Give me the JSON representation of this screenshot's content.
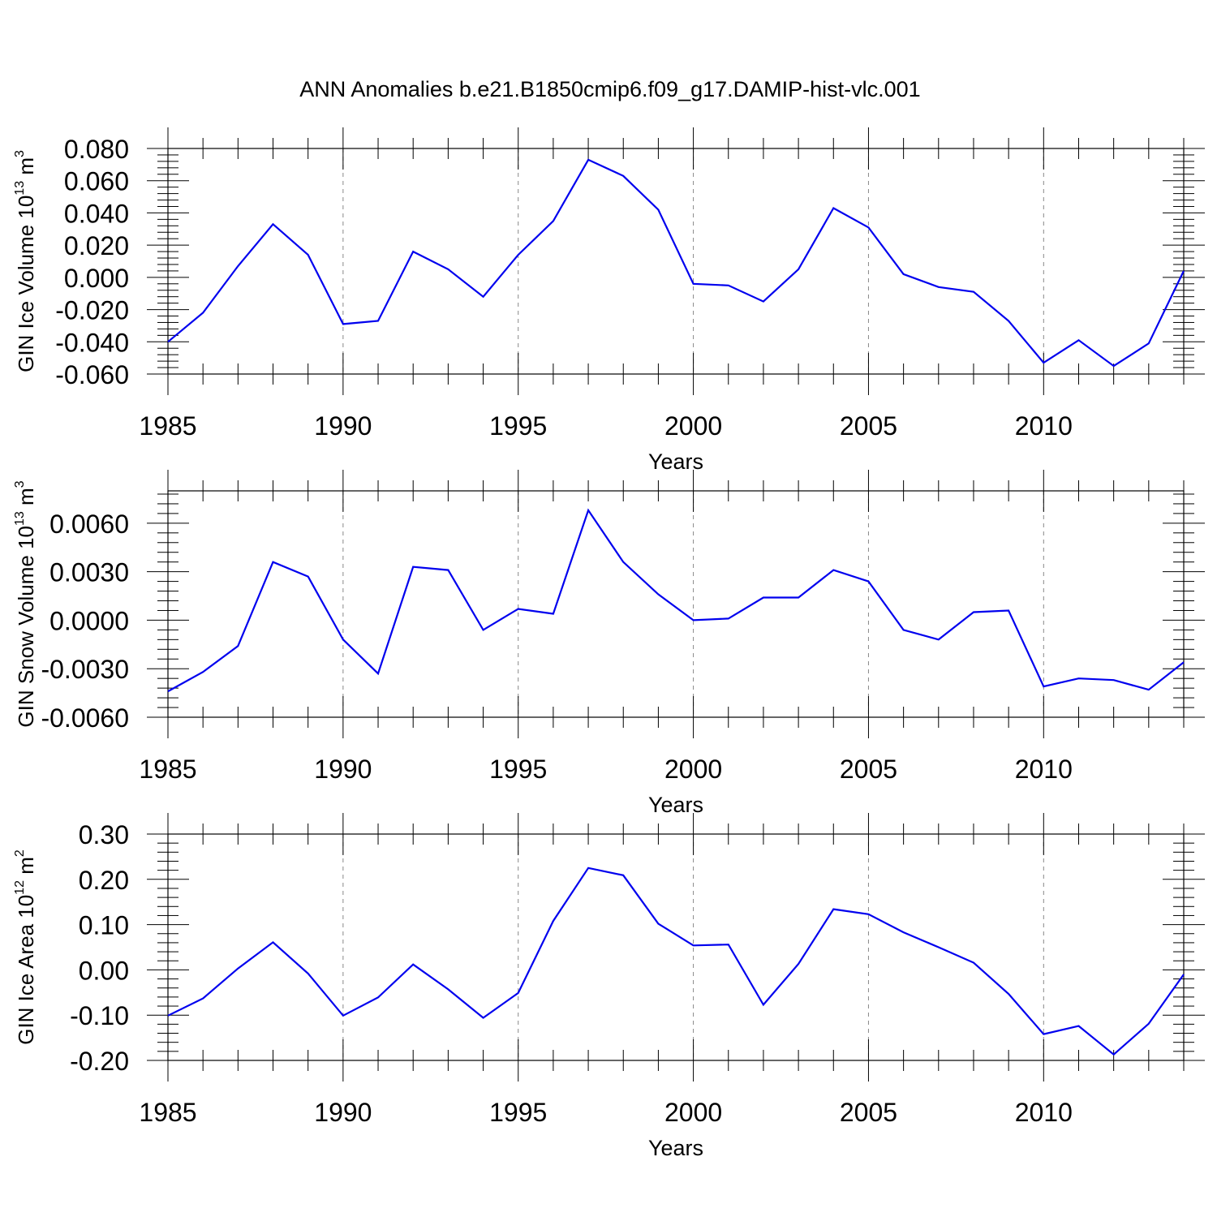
{
  "title": "ANN Anomalies b.e21.B1850cmip6.f09_g17.DAMIP-hist-vlc.001",
  "line_color": "#0000ee",
  "chart_data": [
    {
      "type": "line",
      "ylabel_main": "GIN Ice Volume 10",
      "ylabel_exp": "13",
      "ylabel_unit": " m",
      "ylabel_unit_exp": "3",
      "xlabel": "Years",
      "xlim": [
        1985,
        2014
      ],
      "ylim": [
        -0.06,
        0.08
      ],
      "xticks": [
        1985,
        1990,
        1995,
        2000,
        2005,
        2010
      ],
      "xtick_labels": [
        "1985",
        "1990",
        "1995",
        "2000",
        "2005",
        "2010"
      ],
      "yticks": [
        -0.06,
        -0.04,
        -0.02,
        0.0,
        0.02,
        0.04,
        0.06,
        0.08
      ],
      "ytick_labels": [
        "-0.060",
        "-0.040",
        "-0.020",
        "0.000",
        "0.020",
        "0.040",
        "0.060",
        "0.080"
      ],
      "x": [
        1985,
        1986,
        1987,
        1988,
        1989,
        1990,
        1991,
        1992,
        1993,
        1994,
        1995,
        1996,
        1997,
        1998,
        1999,
        2000,
        2001,
        2002,
        2003,
        2004,
        2005,
        2006,
        2007,
        2008,
        2009,
        2010,
        2011,
        2012,
        2013,
        2014
      ],
      "series": [
        {
          "name": "GIN Ice Volume",
          "values": [
            -0.04,
            -0.022,
            0.007,
            0.033,
            0.014,
            -0.029,
            -0.027,
            0.016,
            0.005,
            -0.012,
            0.014,
            0.035,
            0.073,
            0.063,
            0.042,
            -0.004,
            -0.005,
            -0.015,
            0.005,
            0.043,
            0.031,
            0.002,
            -0.006,
            -0.009,
            -0.027,
            -0.053,
            -0.039,
            -0.055,
            -0.041,
            0.004
          ]
        }
      ]
    },
    {
      "type": "line",
      "ylabel_main": "GIN Snow Volume 10",
      "ylabel_exp": "13",
      "ylabel_unit": " m",
      "ylabel_unit_exp": "3",
      "xlabel": "Years",
      "xlim": [
        1985,
        2014
      ],
      "ylim": [
        -0.006,
        0.008
      ],
      "xticks": [
        1985,
        1990,
        1995,
        2000,
        2005,
        2010
      ],
      "xtick_labels": [
        "1985",
        "1990",
        "1995",
        "2000",
        "2005",
        "2010"
      ],
      "yticks": [
        -0.006,
        -0.003,
        0.0,
        0.003,
        0.006
      ],
      "ytick_labels": [
        "-0.0060",
        "-0.0030",
        "0.0000",
        "0.0030",
        "0.0060"
      ],
      "x": [
        1985,
        1986,
        1987,
        1988,
        1989,
        1990,
        1991,
        1992,
        1993,
        1994,
        1995,
        1996,
        1997,
        1998,
        1999,
        2000,
        2001,
        2002,
        2003,
        2004,
        2005,
        2006,
        2007,
        2008,
        2009,
        2010,
        2011,
        2012,
        2013,
        2014
      ],
      "series": [
        {
          "name": "GIN Snow Volume",
          "values": [
            -0.0044,
            -0.0032,
            -0.0016,
            0.0036,
            0.0027,
            -0.0012,
            -0.0033,
            0.0033,
            0.0031,
            -0.0006,
            0.0007,
            0.0004,
            0.0068,
            0.0036,
            0.0016,
            0.0,
            0.0001,
            0.0014,
            0.0014,
            0.0031,
            0.0024,
            -0.0006,
            -0.0012,
            0.0005,
            0.0006,
            -0.0041,
            -0.0036,
            -0.0037,
            -0.0043,
            -0.0026
          ]
        }
      ]
    },
    {
      "type": "line",
      "ylabel_main": "GIN Ice Area 10",
      "ylabel_exp": "12",
      "ylabel_unit": " m",
      "ylabel_unit_exp": "2",
      "xlabel": "Years",
      "xlim": [
        1985,
        2014
      ],
      "ylim": [
        -0.2,
        0.3
      ],
      "xticks": [
        1985,
        1990,
        1995,
        2000,
        2005,
        2010
      ],
      "xtick_labels": [
        "1985",
        "1990",
        "1995",
        "2000",
        "2005",
        "2010"
      ],
      "yticks": [
        -0.2,
        -0.1,
        0.0,
        0.1,
        0.2,
        0.3
      ],
      "ytick_labels": [
        "-0.20",
        "-0.10",
        "0.00",
        "0.10",
        "0.20",
        "0.30"
      ],
      "x": [
        1985,
        1986,
        1987,
        1988,
        1989,
        1990,
        1991,
        1992,
        1993,
        1994,
        1995,
        1996,
        1997,
        1998,
        1999,
        2000,
        2001,
        2002,
        2003,
        2004,
        2005,
        2006,
        2007,
        2008,
        2009,
        2010,
        2011,
        2012,
        2013,
        2014
      ],
      "series": [
        {
          "name": "GIN Ice Area",
          "values": [
            -0.101,
            -0.063,
            0.003,
            0.061,
            -0.008,
            -0.101,
            -0.061,
            0.012,
            -0.043,
            -0.106,
            -0.051,
            0.108,
            0.225,
            0.209,
            0.102,
            0.054,
            0.056,
            -0.077,
            0.013,
            0.134,
            0.123,
            0.083,
            0.05,
            0.016,
            -0.053,
            -0.142,
            -0.124,
            -0.187,
            -0.119,
            -0.01
          ]
        }
      ]
    }
  ]
}
